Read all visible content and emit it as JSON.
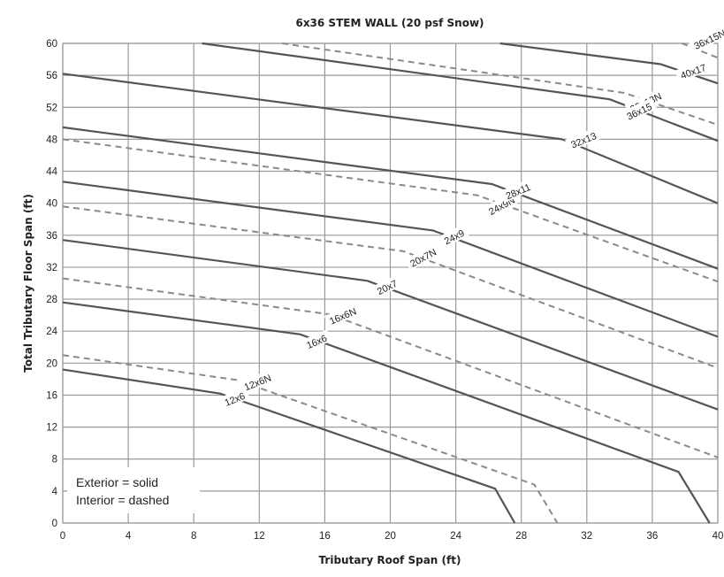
{
  "chart_data": {
    "type": "line",
    "title": "6x36 STEM WALL (20 psf Snow)",
    "xlabel": "Tributary Roof Span (ft)",
    "ylabel": "Total Tributary Floor Span (ft)",
    "xlim": [
      0,
      40
    ],
    "ylim": [
      0,
      60
    ],
    "xticks": [
      "0",
      "4",
      "8",
      "12",
      "16",
      "20",
      "24",
      "28",
      "32",
      "36",
      "40"
    ],
    "yticks": [
      "0",
      "4",
      "8",
      "12",
      "16",
      "20",
      "24",
      "28",
      "32",
      "36",
      "40",
      "44",
      "48",
      "52",
      "56",
      "60"
    ],
    "grid": true,
    "legend": {
      "placement": "bottom-left",
      "lines": [
        "Exterior = solid",
        "Interior = dashed"
      ]
    },
    "series": [
      {
        "name": "12x6",
        "style": "solid",
        "label_at": [
          10.5,
          15.5,
          -22
        ],
        "points": [
          [
            0,
            19.2
          ],
          [
            9.6,
            16.2
          ],
          [
            26.4,
            4.3
          ],
          [
            27.6,
            0
          ]
        ]
      },
      {
        "name": "12x6N",
        "style": "dashed",
        "label_at": [
          11.9,
          17.6,
          -22
        ],
        "points": [
          [
            0,
            21
          ],
          [
            10.6,
            17.9
          ],
          [
            28.8,
            4.8
          ],
          [
            30.2,
            0
          ]
        ]
      },
      {
        "name": "16x6",
        "style": "solid",
        "label_at": [
          15.5,
          22.7,
          -23
        ],
        "points": [
          [
            0,
            27.6
          ],
          [
            14.5,
            23.6
          ],
          [
            37.6,
            6.4
          ],
          [
            39.5,
            0
          ]
        ]
      },
      {
        "name": "16x6N",
        "style": "dashed",
        "label_at": [
          17.1,
          25.9,
          -23
        ],
        "points": [
          [
            0,
            30.6
          ],
          [
            16.3,
            26.1
          ],
          [
            40,
            8.2
          ]
        ]
      },
      {
        "name": "20x7",
        "style": "solid",
        "label_at": [
          19.8,
          29.5,
          -26
        ],
        "points": [
          [
            0,
            35.4
          ],
          [
            18.6,
            30.3
          ],
          [
            40,
            14.2
          ]
        ]
      },
      {
        "name": "20x7N",
        "style": "dashed",
        "label_at": [
          22,
          33.2,
          -28
        ],
        "points": [
          [
            0,
            39.6
          ],
          [
            20.8,
            34
          ],
          [
            40,
            19.4
          ]
        ]
      },
      {
        "name": "24x9",
        "style": "solid",
        "label_at": [
          23.9,
          35.8,
          -27
        ],
        "points": [
          [
            0,
            42.7
          ],
          [
            22.6,
            36.6
          ],
          [
            40,
            23.3
          ]
        ]
      },
      {
        "name": "24x9N",
        "style": "dashed",
        "label_at": [
          26.8,
          39.7,
          -28
        ],
        "points": [
          [
            0,
            48
          ],
          [
            25.3,
            41
          ],
          [
            40,
            30.2
          ]
        ]
      },
      {
        "name": "28x11",
        "style": "solid",
        "label_at": [
          27.8,
          41.5,
          -23
        ],
        "points": [
          [
            0,
            49.5
          ],
          [
            26.2,
            42.4
          ],
          [
            40,
            31.8
          ]
        ]
      },
      {
        "name": "32x13",
        "style": "solid",
        "label_at": [
          31.8,
          47.9,
          -22
        ],
        "points": [
          [
            0,
            56.2
          ],
          [
            30.5,
            48
          ],
          [
            40,
            40
          ]
        ]
      },
      {
        "name": "32x13N",
        "style": "dashed",
        "label_at": [
          35.6,
          52.6,
          -25
        ],
        "points": [
          [
            13.4,
            60
          ],
          [
            34.3,
            53.8
          ],
          [
            40,
            49.8
          ]
        ]
      },
      {
        "name": "36x15",
        "style": "solid",
        "label_at": [
          35.2,
          51.5,
          -25
        ],
        "points": [
          [
            8.5,
            60
          ],
          [
            33.4,
            53
          ],
          [
            40,
            47.8
          ]
        ]
      },
      {
        "name": "36x15N",
        "style": "dashed",
        "label_at": [
          39.5,
          60.5,
          -25
        ],
        "points": [
          [
            37.8,
            60
          ],
          [
            40,
            58.2
          ]
        ]
      },
      {
        "name": "40x17",
        "style": "solid",
        "label_at": [
          38.5,
          56.5,
          -20
        ],
        "points": [
          [
            26.7,
            60
          ],
          [
            36.5,
            57.4
          ],
          [
            40,
            55
          ]
        ]
      }
    ]
  }
}
